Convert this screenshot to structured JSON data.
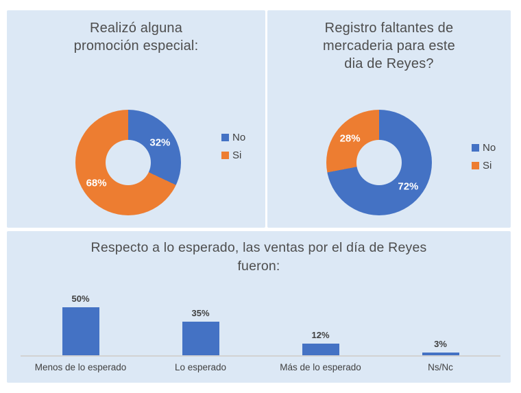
{
  "page": {
    "background": "#ffffff",
    "panel_background": "#dce8f5"
  },
  "colors": {
    "blue": "#4472c4",
    "orange": "#ed7d31",
    "title_text": "#4d4d4d",
    "label_text": "#3f3f3f",
    "legend_text": "#404040",
    "axis_line": "#d2d2d2",
    "slice_label_text": "#ffffff"
  },
  "chart_data": [
    {
      "type": "pie",
      "subtype": "donut",
      "hole_ratio": 0.43,
      "title": "Realizó alguna promoción especial:",
      "title_lines": [
        "Realizó alguna",
        "promoción especial:"
      ],
      "labels": [
        "No",
        "Si"
      ],
      "values": [
        32,
        68
      ],
      "colors": [
        "#4472c4",
        "#ed7d31"
      ],
      "data_labels": [
        "32%",
        "68%"
      ],
      "start_angle_deg": 0,
      "direction": "clockwise",
      "legend_position": "right"
    },
    {
      "type": "pie",
      "subtype": "donut",
      "hole_ratio": 0.43,
      "title": "Registro faltantes de mercaderia para este dia de Reyes?",
      "title_lines": [
        "Registro faltantes de",
        "mercaderia para este",
        "dia de Reyes?"
      ],
      "labels": [
        "No",
        "Si"
      ],
      "values": [
        72,
        28
      ],
      "colors": [
        "#4472c4",
        "#ed7d31"
      ],
      "data_labels": [
        "72%",
        "28%"
      ],
      "start_angle_deg": 0,
      "direction": "clockwise",
      "legend_position": "right"
    },
    {
      "type": "bar",
      "title": "Respecto a lo esperado, las ventas por el día de Reyes fueron:",
      "title_lines": [
        "Respecto a lo esperado, las ventas por el día de Reyes",
        "fueron:"
      ],
      "categories": [
        "Menos de lo esperado",
        "Lo esperado",
        "Más de lo esperado",
        "Ns/Nc"
      ],
      "values": [
        50,
        35,
        12,
        3
      ],
      "data_labels": [
        "50%",
        "35%",
        "12%",
        "3%"
      ],
      "bar_color": "#4472c4",
      "ylim": [
        0,
        55
      ],
      "grid": false,
      "legend": "none",
      "value_axis_visible": false,
      "data_labels_position": "above"
    }
  ]
}
